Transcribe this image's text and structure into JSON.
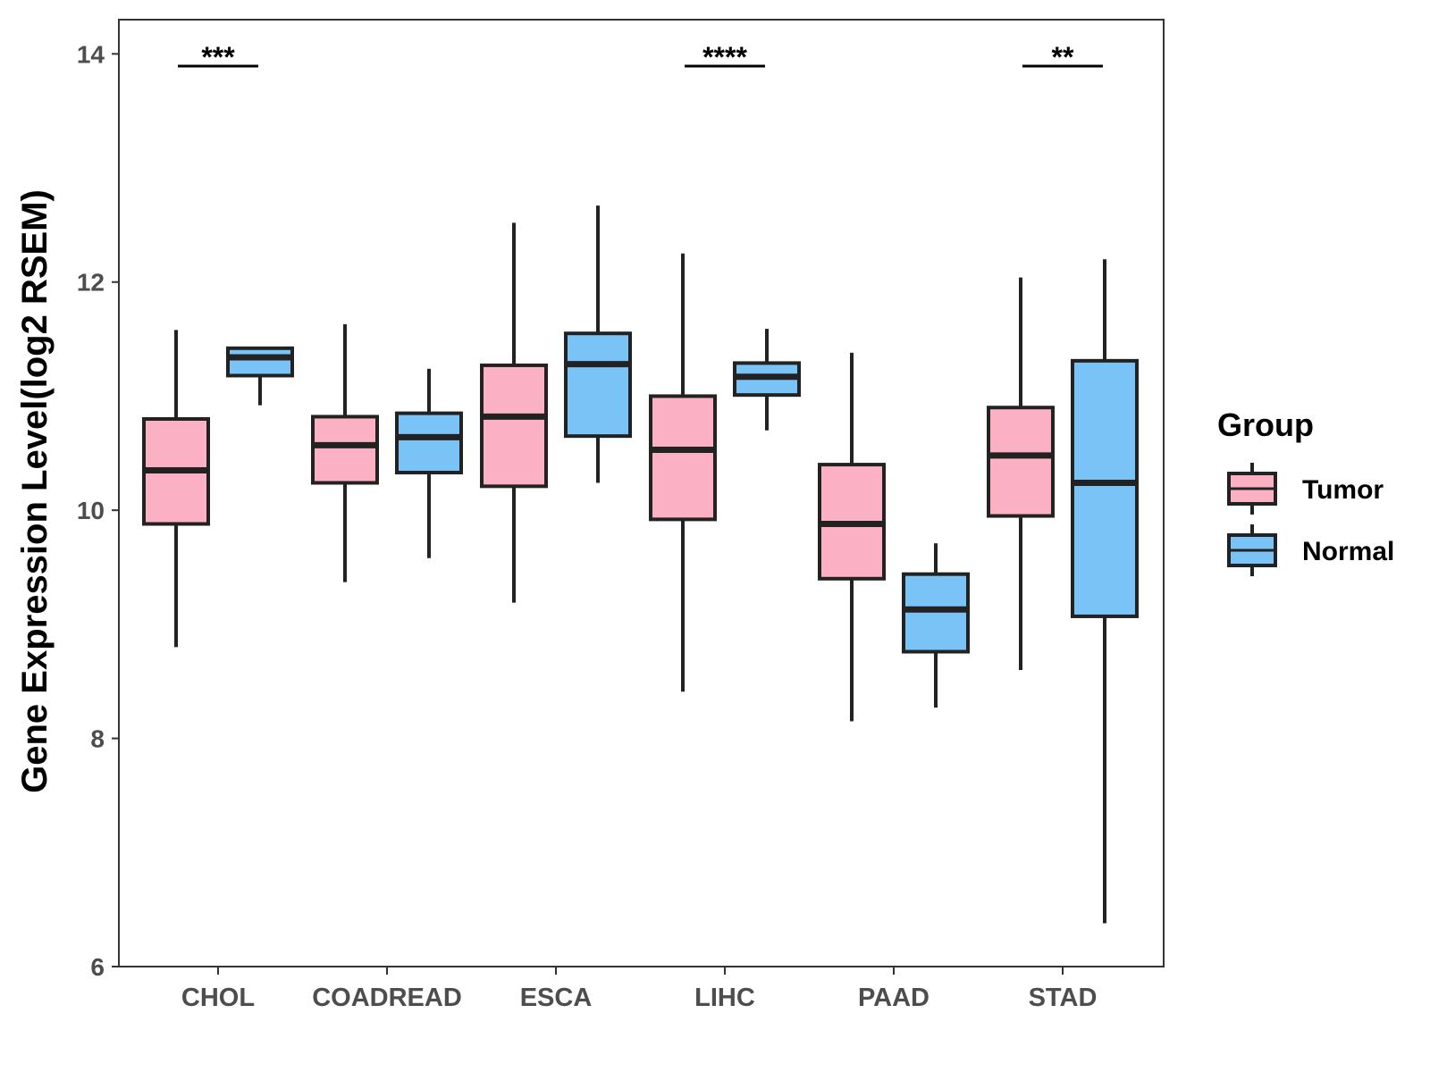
{
  "chart_data": {
    "type": "boxplot",
    "ylabel": "Gene Expression Level(log2 RSEM)",
    "xlabel": "",
    "ylim": [
      6,
      14.3
    ],
    "yticks": [
      6,
      8,
      10,
      12,
      14
    ],
    "yticklabels": [
      "6",
      "8",
      "10",
      "12",
      "14"
    ],
    "categories": [
      "CHOL",
      "COADREAD",
      "ESCA",
      "LIHC",
      "PAAD",
      "STAD"
    ],
    "grid": false,
    "legend": {
      "title": "Group",
      "position": "right",
      "entries": [
        "Tumor",
        "Normal"
      ]
    },
    "series": [
      {
        "name": "Tumor",
        "color": "#fbb1c3",
        "boxes": [
          {
            "min": 8.8,
            "q1": 9.88,
            "median": 10.35,
            "q3": 10.8,
            "max": 11.58
          },
          {
            "min": 9.37,
            "q1": 10.24,
            "median": 10.57,
            "q3": 10.82,
            "max": 11.63
          },
          {
            "min": 9.19,
            "q1": 10.21,
            "median": 10.82,
            "q3": 11.27,
            "max": 12.52
          },
          {
            "min": 8.41,
            "q1": 9.92,
            "median": 10.53,
            "q3": 11.0,
            "max": 12.25
          },
          {
            "min": 8.15,
            "q1": 9.4,
            "median": 9.88,
            "q3": 10.4,
            "max": 11.38
          },
          {
            "min": 8.6,
            "q1": 9.95,
            "median": 10.48,
            "q3": 10.9,
            "max": 12.04
          }
        ]
      },
      {
        "name": "Normal",
        "color": "#7ac3f7",
        "boxes": [
          {
            "min": 10.92,
            "q1": 11.18,
            "median": 11.34,
            "q3": 11.42,
            "max": 11.42
          },
          {
            "min": 9.58,
            "q1": 10.33,
            "median": 10.64,
            "q3": 10.85,
            "max": 11.24
          },
          {
            "min": 10.24,
            "q1": 10.65,
            "median": 11.28,
            "q3": 11.55,
            "max": 12.67
          },
          {
            "min": 10.7,
            "q1": 11.01,
            "median": 11.17,
            "q3": 11.29,
            "max": 11.59
          },
          {
            "min": 8.27,
            "q1": 8.76,
            "median": 9.13,
            "q3": 9.44,
            "max": 9.71
          },
          {
            "min": 6.38,
            "q1": 9.07,
            "median": 10.24,
            "q3": 11.31,
            "max": 12.2
          }
        ]
      }
    ],
    "annotations": [
      {
        "category": "CHOL",
        "text": "***"
      },
      {
        "category": "LIHC",
        "text": "****"
      },
      {
        "category": "STAD",
        "text": "**"
      }
    ]
  }
}
